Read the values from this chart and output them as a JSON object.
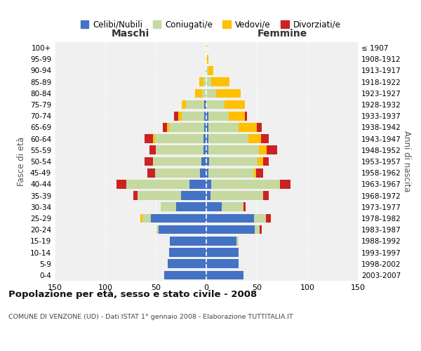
{
  "age_groups": [
    "0-4",
    "5-9",
    "10-14",
    "15-19",
    "20-24",
    "25-29",
    "30-34",
    "35-39",
    "40-44",
    "45-49",
    "50-54",
    "55-59",
    "60-64",
    "65-69",
    "70-74",
    "75-79",
    "80-84",
    "85-89",
    "90-94",
    "95-99",
    "100+"
  ],
  "birth_years": [
    "2003-2007",
    "1998-2002",
    "1993-1997",
    "1988-1992",
    "1983-1987",
    "1978-1982",
    "1973-1977",
    "1968-1972",
    "1963-1967",
    "1958-1962",
    "1953-1957",
    "1948-1952",
    "1943-1947",
    "1938-1942",
    "1933-1937",
    "1928-1932",
    "1923-1927",
    "1918-1922",
    "1913-1917",
    "1908-1912",
    "≤ 1907"
  ],
  "colors": {
    "celibe": "#4472c4",
    "coniugato": "#c5d9a0",
    "vedovo": "#ffc000",
    "divorziato": "#cc2222"
  },
  "maschi": {
    "celibe": [
      42,
      38,
      37,
      36,
      47,
      55,
      30,
      25,
      17,
      6,
      5,
      3,
      3,
      2,
      2,
      2,
      0,
      0,
      0,
      0,
      0
    ],
    "coniugato": [
      0,
      0,
      0,
      0,
      2,
      8,
      15,
      43,
      62,
      45,
      48,
      47,
      48,
      35,
      22,
      18,
      4,
      3,
      0,
      0,
      0
    ],
    "vedovo": [
      0,
      0,
      0,
      0,
      0,
      2,
      0,
      0,
      0,
      0,
      0,
      0,
      2,
      2,
      4,
      4,
      7,
      4,
      1,
      0,
      0
    ],
    "divorziato": [
      0,
      0,
      0,
      0,
      0,
      0,
      0,
      4,
      10,
      7,
      8,
      6,
      8,
      4,
      4,
      0,
      0,
      0,
      0,
      0,
      0
    ]
  },
  "femmine": {
    "nubile": [
      37,
      32,
      32,
      30,
      48,
      47,
      15,
      4,
      5,
      2,
      3,
      2,
      2,
      2,
      2,
      0,
      0,
      0,
      0,
      0,
      0
    ],
    "coniugata": [
      0,
      0,
      0,
      2,
      5,
      12,
      22,
      52,
      68,
      45,
      48,
      50,
      40,
      30,
      20,
      18,
      10,
      5,
      2,
      0,
      0
    ],
    "vedova": [
      0,
      0,
      0,
      0,
      0,
      0,
      0,
      0,
      0,
      2,
      5,
      8,
      12,
      18,
      16,
      20,
      24,
      18,
      5,
      2,
      1
    ],
    "divorziata": [
      0,
      0,
      0,
      0,
      2,
      5,
      2,
      6,
      10,
      7,
      6,
      10,
      8,
      5,
      2,
      0,
      0,
      0,
      0,
      0,
      0
    ]
  },
  "xlim": 150,
  "title": "Popolazione per età, sesso e stato civile - 2008",
  "subtitle": "COMUNE DI VENZONE (UD) - Dati ISTAT 1° gennaio 2008 - Elaborazione TUTTITALIA.IT",
  "ylabel_left": "Fasce di età",
  "ylabel_right": "Anni di nascita",
  "xlabel_maschi": "Maschi",
  "xlabel_femmine": "Femmine",
  "legend_labels": [
    "Celibi/Nubili",
    "Coniugati/e",
    "Vedovi/e",
    "Divorziati/e"
  ],
  "bg_color": "#f0f0f0",
  "grid_color": "#cccccc"
}
